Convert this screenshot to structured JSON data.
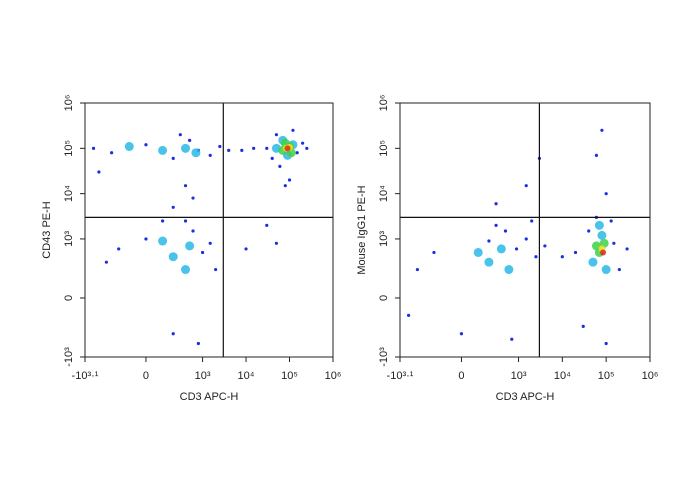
{
  "chart_data": [
    {
      "type": "scatter",
      "xlabel": "CD3 APC-H",
      "ylabel": "CD43 PE-H",
      "xscale": "biexponential",
      "yscale": "biexponential",
      "xlim": [
        -1259,
        1000000
      ],
      "ylim": [
        -1000,
        1000000
      ],
      "xticks": [
        {
          "value": -1259,
          "label": "-10³·¹"
        },
        0,
        {
          "value": 1000,
          "label": "10³"
        },
        {
          "value": 10000,
          "label": "10⁴"
        },
        {
          "value": 100000,
          "label": "10⁵"
        },
        {
          "value": 1000000,
          "label": "10⁶"
        }
      ],
      "yticks": [
        {
          "value": -1000,
          "label": "-10³"
        },
        0,
        {
          "value": 1000,
          "label": "10³"
        },
        {
          "value": 10000,
          "label": "10⁴"
        },
        {
          "value": 100000,
          "label": "10⁵"
        },
        {
          "value": 1000000,
          "label": "10⁶"
        }
      ],
      "gates": {
        "x": 3000,
        "y": 3000
      },
      "series": [
        {
          "color": "#1f2de0",
          "x": [
            -300,
            0,
            200,
            500,
            800,
            1500,
            2500,
            4000,
            -800,
            300,
            30000,
            50000,
            150000,
            200000,
            60000,
            100000,
            80000,
            40000,
            120000,
            250000,
            15000,
            8000,
            -400,
            0,
            200,
            600,
            1000,
            1500,
            -200,
            400,
            2000,
            800,
            200,
            400,
            100,
            600,
            30000,
            50000,
            10000,
            -600
          ],
          "y": [
            80000,
            120000,
            60000,
            150000,
            90000,
            70000,
            110000,
            90000,
            100000,
            200000,
            100000,
            200000,
            80000,
            130000,
            40000,
            20000,
            15000,
            60000,
            250000,
            100000,
            100000,
            90000,
            300,
            1000,
            -300,
            1500,
            500,
            800,
            600,
            2500,
            200,
            -500,
            5000,
            15000,
            2500,
            8000,
            2000,
            800,
            600,
            30000
          ]
        },
        {
          "color": "#2ab8e6",
          "x": [
            100,
            400,
            700,
            -100,
            50000,
            90000,
            120000,
            70000,
            200,
            500,
            100,
            400
          ],
          "y": [
            90000,
            100000,
            80000,
            110000,
            100000,
            70000,
            120000,
            150000,
            400,
            700,
            900,
            200
          ]
        },
        {
          "color": "#3ed048",
          "x": [
            70000,
            100000,
            80000,
            110000
          ],
          "y": [
            90000,
            110000,
            130000,
            80000
          ]
        },
        {
          "color": "#f2e21c",
          "x": [
            85000,
            100000
          ],
          "y": [
            100000,
            105000
          ]
        },
        {
          "color": "#e3261a",
          "x": [
            90000
          ],
          "y": [
            100000
          ]
        }
      ]
    },
    {
      "type": "scatter",
      "xlabel": "CD3 APC-H",
      "ylabel": "Mouse IgG1 PE-H",
      "xscale": "biexponential",
      "yscale": "biexponential",
      "xlim": [
        -1259,
        1000000
      ],
      "ylim": [
        -1000,
        1000000
      ],
      "xticks": [
        {
          "value": -1259,
          "label": "-10³·¹"
        },
        0,
        {
          "value": 1000,
          "label": "10³"
        },
        {
          "value": 10000,
          "label": "10⁴"
        },
        {
          "value": 100000,
          "label": "10⁵"
        },
        {
          "value": 1000000,
          "label": "10⁶"
        }
      ],
      "yticks": [
        {
          "value": -1000,
          "label": "-10³"
        },
        0,
        {
          "value": 1000,
          "label": "10³"
        },
        {
          "value": 10000,
          "label": "10⁴"
        },
        {
          "value": 100000,
          "label": "10⁵"
        },
        {
          "value": 1000000,
          "label": "10⁶"
        }
      ],
      "gates": {
        "x": 3000,
        "y": 3000
      },
      "series": [
        {
          "color": "#1f2de0",
          "x": [
            -500,
            -200,
            0,
            200,
            500,
            900,
            1500,
            2500,
            4000,
            -800,
            300,
            700,
            20000,
            40000,
            60000,
            150000,
            200000,
            100000,
            30000,
            130000,
            10000,
            300000,
            3000,
            1500,
            300,
            80000,
            60000,
            100000,
            2000
          ],
          "y": [
            200,
            500,
            -300,
            900,
            1500,
            600,
            1000,
            400,
            700,
            -100,
            2000,
            -400,
            500,
            1500,
            3000,
            800,
            200,
            -500,
            -200,
            2500,
            400,
            600,
            60000,
            15000,
            6000,
            250000,
            70000,
            10000,
            2500
          ]
        },
        {
          "color": "#2ab8e6",
          "x": [
            200,
            400,
            600,
            100,
            50000,
            80000,
            100000,
            70000
          ],
          "y": [
            300,
            600,
            200,
            500,
            300,
            1200,
            200,
            2000
          ]
        },
        {
          "color": "#3ed048",
          "x": [
            70000,
            90000,
            60000
          ],
          "y": [
            500,
            800,
            700
          ]
        },
        {
          "color": "#f2e21c",
          "x": [
            80000
          ],
          "y": [
            600
          ]
        },
        {
          "color": "#e3261a",
          "x": [
            85000
          ],
          "y": [
            500
          ]
        }
      ]
    }
  ]
}
